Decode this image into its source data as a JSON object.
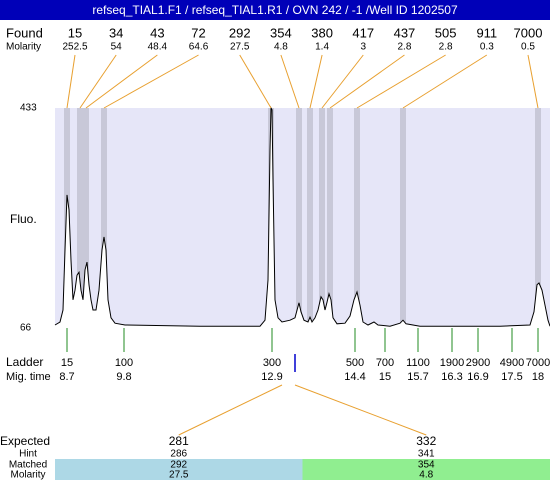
{
  "chart_data": {
    "type": "electropherogram",
    "title": "refseq_TIAL1.F1 / refseq_TIAL1.R1 / OVN 242 / -1 /Well ID 1202507",
    "y_label": "Fluo.",
    "ylim": [
      66,
      433
    ],
    "yticks": [
      433,
      66
    ],
    "xlim": [
      0,
      495
    ],
    "plot_color": "#e6e6f8",
    "band_color": "#c8c8d8",
    "trace": {
      "color": "#000000",
      "x": [
        0,
        5,
        8,
        10,
        12,
        14,
        16,
        18,
        20,
        22,
        24,
        26,
        28,
        30,
        32,
        34,
        36,
        38,
        41,
        44,
        47,
        49,
        51,
        53,
        56,
        60,
        70,
        145,
        205,
        210,
        213,
        215,
        216,
        217,
        218,
        220,
        223,
        227,
        235,
        240,
        244,
        246,
        249,
        253,
        255,
        257,
        260,
        263,
        266,
        268,
        270,
        272,
        274,
        276,
        278,
        282,
        290,
        295,
        299,
        302,
        305,
        308,
        313,
        319,
        323,
        335,
        345,
        348,
        351,
        365,
        445,
        475,
        479,
        482,
        484,
        487,
        490,
        493,
        495
      ],
      "y": [
        71,
        76,
        96,
        196,
        288,
        263,
        179,
        113,
        129,
        154,
        159,
        129,
        113,
        163,
        176,
        138,
        113,
        96,
        96,
        129,
        196,
        218,
        196,
        113,
        83,
        74,
        71,
        69,
        69,
        79,
        146,
        363,
        433,
        430,
        313,
        113,
        83,
        76,
        79,
        83,
        108,
        93,
        79,
        76,
        84,
        76,
        83,
        96,
        118,
        113,
        96,
        109,
        123,
        113,
        83,
        73,
        74,
        86,
        113,
        126,
        104,
        76,
        71,
        76,
        71,
        69,
        74,
        79,
        73,
        69,
        69,
        71,
        93,
        138,
        141,
        129,
        104,
        79,
        69
      ]
    },
    "found": {
      "label": "Found",
      "molarity_label": "Molarity",
      "color": "#e8a030",
      "sizes": [
        15,
        34,
        43,
        72,
        292,
        354,
        380,
        417,
        437,
        505,
        911,
        7000
      ],
      "molarity": [
        252.5,
        54,
        48.4,
        64.6,
        27.5,
        4.8,
        1.4,
        3,
        2.8,
        2.8,
        0.3,
        0.5
      ],
      "positions": [
        12,
        25,
        31,
        49,
        216,
        244,
        255,
        267,
        275,
        302,
        348,
        483
      ]
    },
    "ladder": {
      "label": "Ladder",
      "time_label": "Mig. time",
      "color": "#228b22",
      "sizes": [
        15,
        100,
        300,
        500,
        700,
        1100,
        1900,
        2900,
        4900,
        7000
      ],
      "times": [
        8.7,
        9.8,
        12.9,
        14.4,
        15,
        15.7,
        16.3,
        16.9,
        17.5,
        18
      ],
      "positions": [
        12,
        69,
        217,
        300,
        330,
        363,
        397,
        423,
        457,
        483
      ]
    },
    "expected": {
      "labels": [
        "Expected",
        "Hint",
        "Matched",
        "Molarity"
      ],
      "columns": [
        {
          "expected": 281,
          "hint": 286,
          "matched": 292,
          "molarity": 27.5,
          "color": "#add8e6"
        },
        {
          "expected": 332,
          "hint": 341,
          "matched": 354,
          "molarity": 4.8,
          "color": "#90ee90"
        }
      ]
    }
  }
}
